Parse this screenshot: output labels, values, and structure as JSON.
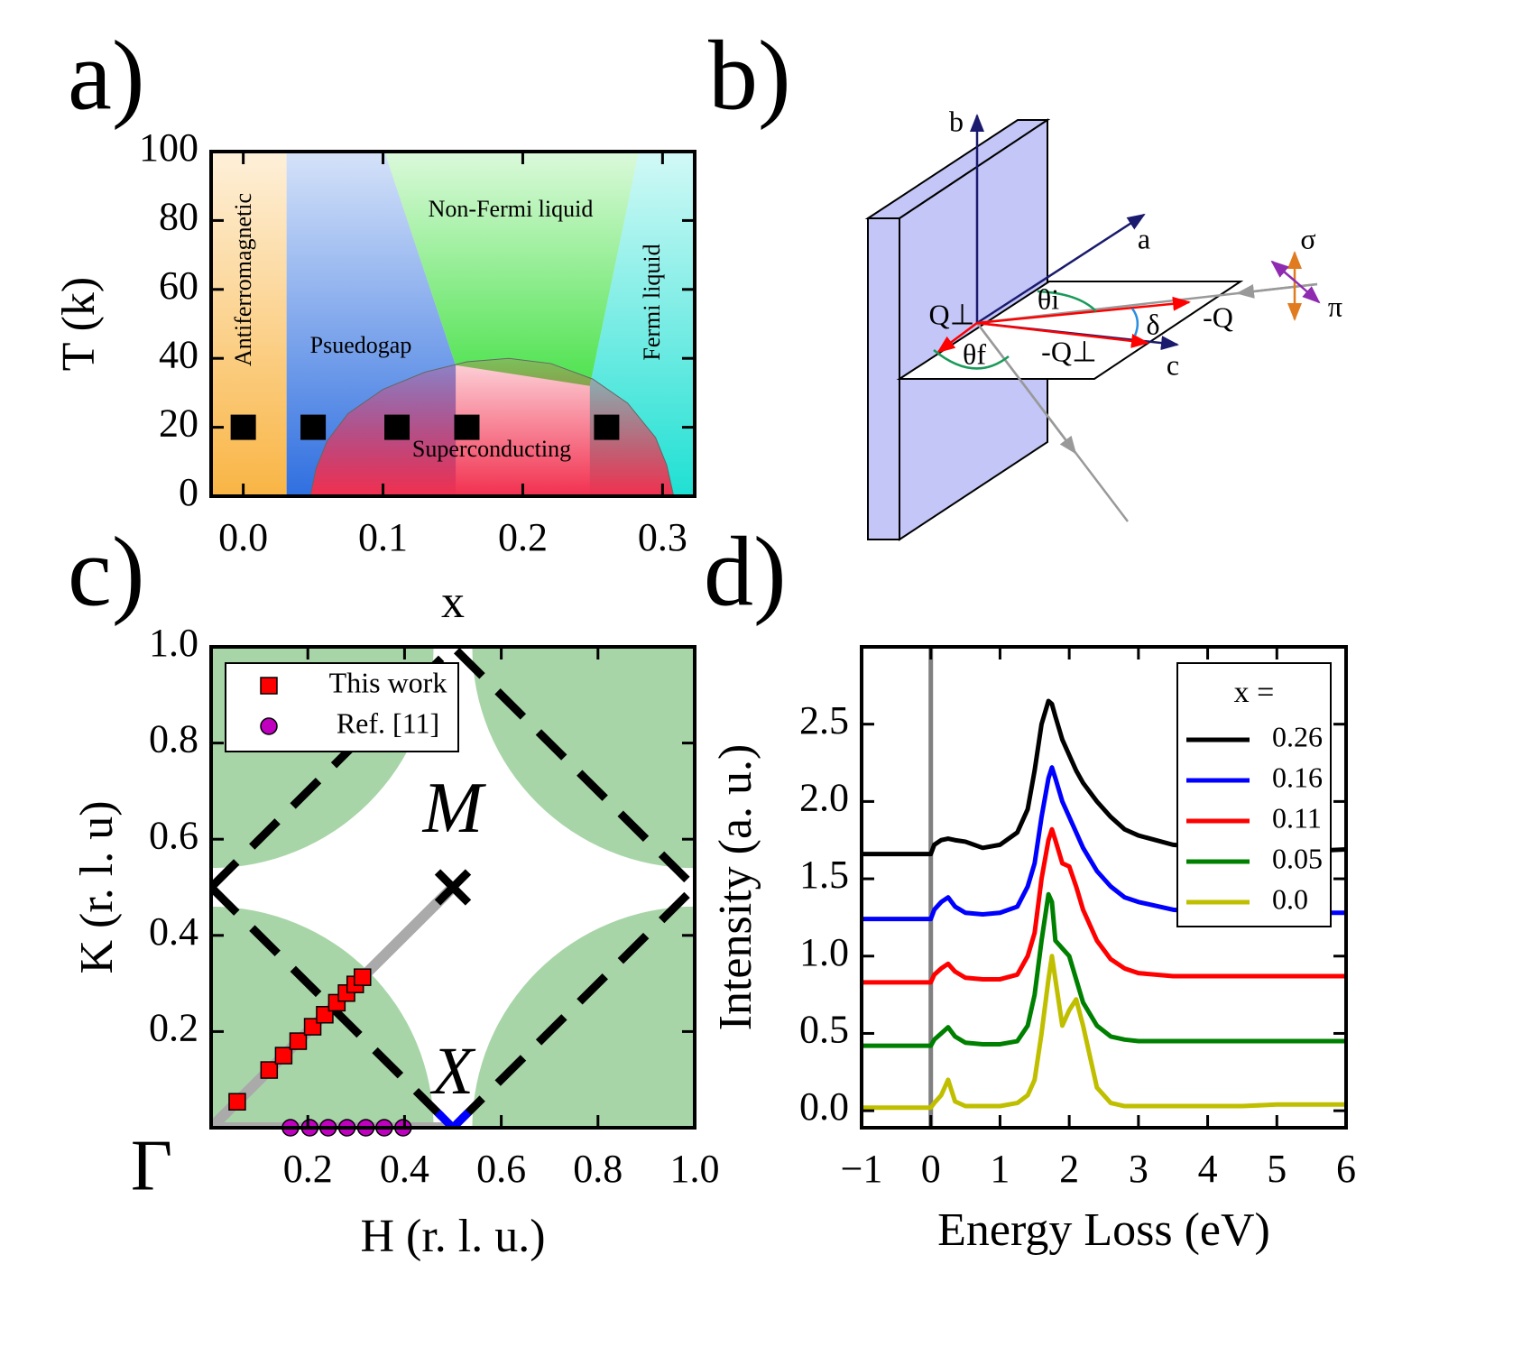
{
  "chart_data": [
    {
      "type": "phase",
      "panel": "a)",
      "xlabel": "x",
      "ylabel": "T (k)",
      "xlim": [
        -0.023,
        0.323
      ],
      "ylim": [
        0,
        100
      ],
      "xticks": [
        {
          "value": 0,
          "label": "0.0"
        },
        0.1,
        0.2,
        0.3
      ],
      "yticks": [
        0,
        20,
        40,
        60,
        80,
        100
      ],
      "regions": [
        {
          "name": "Antiferromagnetic",
          "color": "#f9b545",
          "x": [
            -0.023,
            0.031,
            0.031,
            -0.023
          ],
          "y": [
            100,
            100,
            0,
            0
          ]
        },
        {
          "name": "Psuedogap",
          "color": "#2f6fe0",
          "x": [
            0.031,
            0.101,
            0.152,
            0.152,
            0.031
          ],
          "y": [
            100,
            100,
            38,
            0,
            0
          ]
        },
        {
          "name": "Non-Fermi liquid",
          "color": "#4de24d",
          "x": [
            0.101,
            0.283,
            0.248,
            0.152
          ],
          "y": [
            100,
            100,
            32,
            38
          ]
        },
        {
          "name": "Fermi liquid",
          "color": "#1fe0d3",
          "x": [
            0.283,
            0.323,
            0.323,
            0.248,
            0.248
          ],
          "y": [
            100,
            100,
            0,
            0,
            32
          ]
        },
        {
          "name": "Superconducting",
          "color": "#f2304f",
          "x": [
            0.048,
            0.052,
            0.06,
            0.075,
            0.1,
            0.13,
            0.16,
            0.19,
            0.22,
            0.25,
            0.275,
            0.295,
            0.303,
            0.308
          ],
          "y": [
            0,
            8,
            16,
            24,
            31,
            36,
            39,
            40,
            38.5,
            34,
            27,
            17,
            9,
            0
          ]
        }
      ],
      "points": {
        "color": "#000000",
        "x": [
          0,
          0.05,
          0.11,
          0.16,
          0.26
        ],
        "y": [
          20,
          20,
          20,
          20,
          20
        ]
      }
    },
    {
      "type": "diagram",
      "panel": "b)",
      "labels": {
        "b": "b",
        "a": "a",
        "c": "c",
        "q_perp": "Q⊥",
        "theta_i": "θi",
        "theta_f": "θf",
        "delta": "δ",
        "minus_q": "-Q",
        "minus_q_perp": "-Q⊥",
        "sigma": "σ",
        "pi": "π"
      }
    },
    {
      "type": "scatter",
      "panel": "c)",
      "xlabel": "H (r. l. u.)",
      "ylabel": "K (r. l. u)",
      "xlim": [
        0,
        1
      ],
      "ylim": [
        0,
        1
      ],
      "xticks": [
        0.2,
        0.4,
        0.6,
        0.8,
        {
          "value": 1,
          "label": "1.0"
        }
      ],
      "yticks": [
        0.2,
        0.4,
        0.6,
        0.8,
        {
          "value": 1,
          "label": "1.0"
        }
      ],
      "fermi_surface": {
        "radius": 0.46,
        "color": "#a8d5a8"
      },
      "guide": {
        "color": "#aaaaaa",
        "x": [
          0.5,
          0,
          0.5
        ],
        "y": [
          0.5,
          0,
          0
        ]
      },
      "zone_boundary": {
        "color": "#000000",
        "x": [
          0,
          0.5,
          1,
          0.5,
          0
        ],
        "y": [
          0.5,
          0,
          0.5,
          1,
          0.5
        ]
      },
      "series": [
        {
          "name": "This work",
          "marker": "square",
          "color": "#ff0000",
          "x": [
            0.054,
            0.12,
            0.15,
            0.18,
            0.21,
            0.235,
            0.26,
            0.28,
            0.298,
            0.313
          ],
          "values": [
            0.054,
            0.12,
            0.15,
            0.18,
            0.21,
            0.235,
            0.26,
            0.28,
            0.298,
            0.313
          ]
        },
        {
          "name": "Ref. [11]",
          "marker": "circle",
          "color": "#bf00bf",
          "x": [
            0.164,
            0.204,
            0.242,
            0.281,
            0.32,
            0.358,
            0.397
          ],
          "values": [
            0,
            0,
            0,
            0,
            0,
            0,
            0
          ]
        }
      ],
      "special_points": [
        {
          "label": "M",
          "x": 0.5,
          "y": 0.5,
          "color": "#000000"
        },
        {
          "label": "X",
          "x": 0.5,
          "y": 0,
          "color": "#0000ff"
        }
      ],
      "origin_label": "Γ"
    },
    {
      "type": "line",
      "panel": "d)",
      "xlabel": "Energy Loss (eV)",
      "ylabel": "Intensity (a. u.)",
      "xlim": [
        -1,
        6
      ],
      "ylim": [
        -0.11,
        3.0
      ],
      "xticks": [
        {
          "value": -1,
          "label": "−1"
        },
        0,
        1,
        2,
        3,
        4,
        5,
        6
      ],
      "yticks": [
        {
          "value": 0,
          "label": "0.0"
        },
        0.5,
        {
          "value": 1,
          "label": "1.0"
        },
        1.5,
        {
          "value": 2,
          "label": "2.0"
        },
        2.5
      ],
      "vline": 0,
      "vline_color": "#808080",
      "legend_title": "x =",
      "x": [
        -1,
        -0.5,
        0,
        0.05,
        0.15,
        0.25,
        0.35,
        0.5,
        0.75,
        1,
        1.25,
        1.4,
        1.5,
        1.6,
        1.7,
        1.75,
        1.8,
        1.9,
        2.0,
        2.1,
        2.2,
        2.4,
        2.6,
        2.8,
        3,
        3.5,
        4,
        4.5,
        5,
        5.5,
        6
      ],
      "series": [
        {
          "name": "0.26",
          "color": "#000000",
          "values": [
            1.66,
            1.66,
            1.66,
            1.72,
            1.75,
            1.76,
            1.75,
            1.74,
            1.7,
            1.72,
            1.8,
            1.95,
            2.2,
            2.5,
            2.65,
            2.63,
            2.55,
            2.4,
            2.3,
            2.2,
            2.12,
            2.0,
            1.9,
            1.82,
            1.78,
            1.72,
            1.7,
            1.69,
            1.68,
            1.68,
            1.69
          ]
        },
        {
          "name": "0.16",
          "color": "#0000ff",
          "values": [
            1.24,
            1.24,
            1.24,
            1.3,
            1.35,
            1.38,
            1.32,
            1.28,
            1.27,
            1.28,
            1.32,
            1.45,
            1.6,
            1.9,
            2.15,
            2.22,
            2.15,
            2.0,
            1.9,
            1.8,
            1.7,
            1.55,
            1.45,
            1.38,
            1.35,
            1.3,
            1.28,
            1.28,
            1.28,
            1.28,
            1.28
          ]
        },
        {
          "name": "0.11",
          "color": "#ff0000",
          "values": [
            0.83,
            0.83,
            0.83,
            0.88,
            0.92,
            0.95,
            0.9,
            0.86,
            0.85,
            0.85,
            0.88,
            1.0,
            1.15,
            1.5,
            1.75,
            1.82,
            1.75,
            1.6,
            1.58,
            1.45,
            1.3,
            1.1,
            0.98,
            0.92,
            0.89,
            0.87,
            0.87,
            0.87,
            0.87,
            0.87,
            0.87
          ]
        },
        {
          "name": "0.05",
          "color": "#008000",
          "values": [
            0.42,
            0.42,
            0.42,
            0.46,
            0.5,
            0.54,
            0.48,
            0.44,
            0.43,
            0.43,
            0.45,
            0.55,
            0.75,
            1.1,
            1.4,
            1.35,
            1.1,
            1.05,
            1.0,
            0.85,
            0.7,
            0.55,
            0.48,
            0.46,
            0.45,
            0.45,
            0.45,
            0.45,
            0.45,
            0.45,
            0.45
          ]
        },
        {
          "name": "0.0",
          "color": "#bfbf00",
          "values": [
            0.02,
            0.02,
            0.02,
            0.05,
            0.1,
            0.2,
            0.06,
            0.03,
            0.03,
            0.03,
            0.05,
            0.1,
            0.2,
            0.5,
            0.85,
            1.0,
            0.85,
            0.55,
            0.65,
            0.72,
            0.55,
            0.15,
            0.05,
            0.03,
            0.03,
            0.03,
            0.03,
            0.03,
            0.04,
            0.04,
            0.04
          ]
        }
      ]
    }
  ]
}
